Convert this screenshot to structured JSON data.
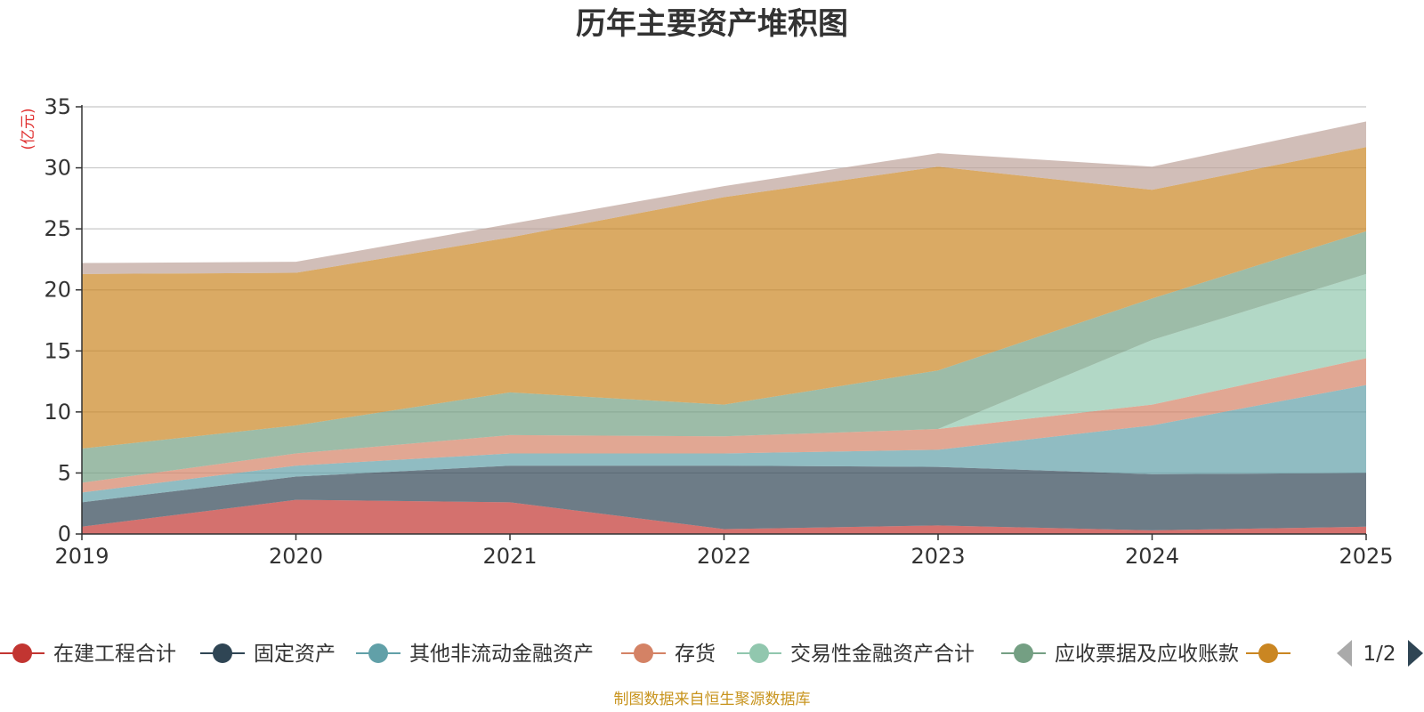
{
  "chart_data": {
    "type": "area",
    "stacked": true,
    "title": "历年主要资产堆积图",
    "unit": "(亿元)",
    "x": [
      "2019",
      "2020",
      "2021",
      "2022",
      "2023",
      "2024",
      "2025"
    ],
    "ylim": [
      0,
      35
    ],
    "yticks": [
      0,
      5,
      10,
      15,
      20,
      25,
      30,
      35
    ],
    "grid": true,
    "series": [
      {
        "name": "在建工程合计",
        "color": "#c23531",
        "values": [
          0.6,
          2.8,
          2.6,
          0.4,
          0.7,
          0.3,
          0.6
        ]
      },
      {
        "name": "固定资产",
        "color": "#2f4554",
        "values": [
          2.0,
          1.9,
          3.0,
          5.2,
          4.8,
          4.6,
          4.4
        ]
      },
      {
        "name": "其他非流动金融资产",
        "color": "#61a0a8",
        "values": [
          0.8,
          0.9,
          1.0,
          1.0,
          1.4,
          4.0,
          7.2
        ]
      },
      {
        "name": "存货",
        "color": "#d48265",
        "values": [
          0.8,
          1.0,
          1.5,
          1.4,
          1.7,
          1.7,
          2.2
        ]
      },
      {
        "name": "交易性金融资产合计",
        "color": "#91c7ae",
        "values": [
          0,
          0,
          0,
          0,
          0,
          5.3,
          6.9
        ]
      },
      {
        "name": "应收票据及应收账款",
        "color": "#749f83",
        "values": [
          2.8,
          2.3,
          3.5,
          2.6,
          4.8,
          3.4,
          3.5
        ]
      },
      {
        "name": "",
        "color": "#ca8622",
        "values": [
          14.3,
          12.5,
          12.7,
          17.0,
          16.7,
          8.9,
          6.9
        ]
      },
      {
        "name": "",
        "color": "#bda29a",
        "values": [
          0.9,
          0.9,
          1.1,
          0.9,
          1.1,
          1.9,
          2.1
        ]
      }
    ],
    "legend": {
      "position": "bottom",
      "page": "1/2"
    },
    "source": "制图数据来自恒生聚源数据库"
  }
}
